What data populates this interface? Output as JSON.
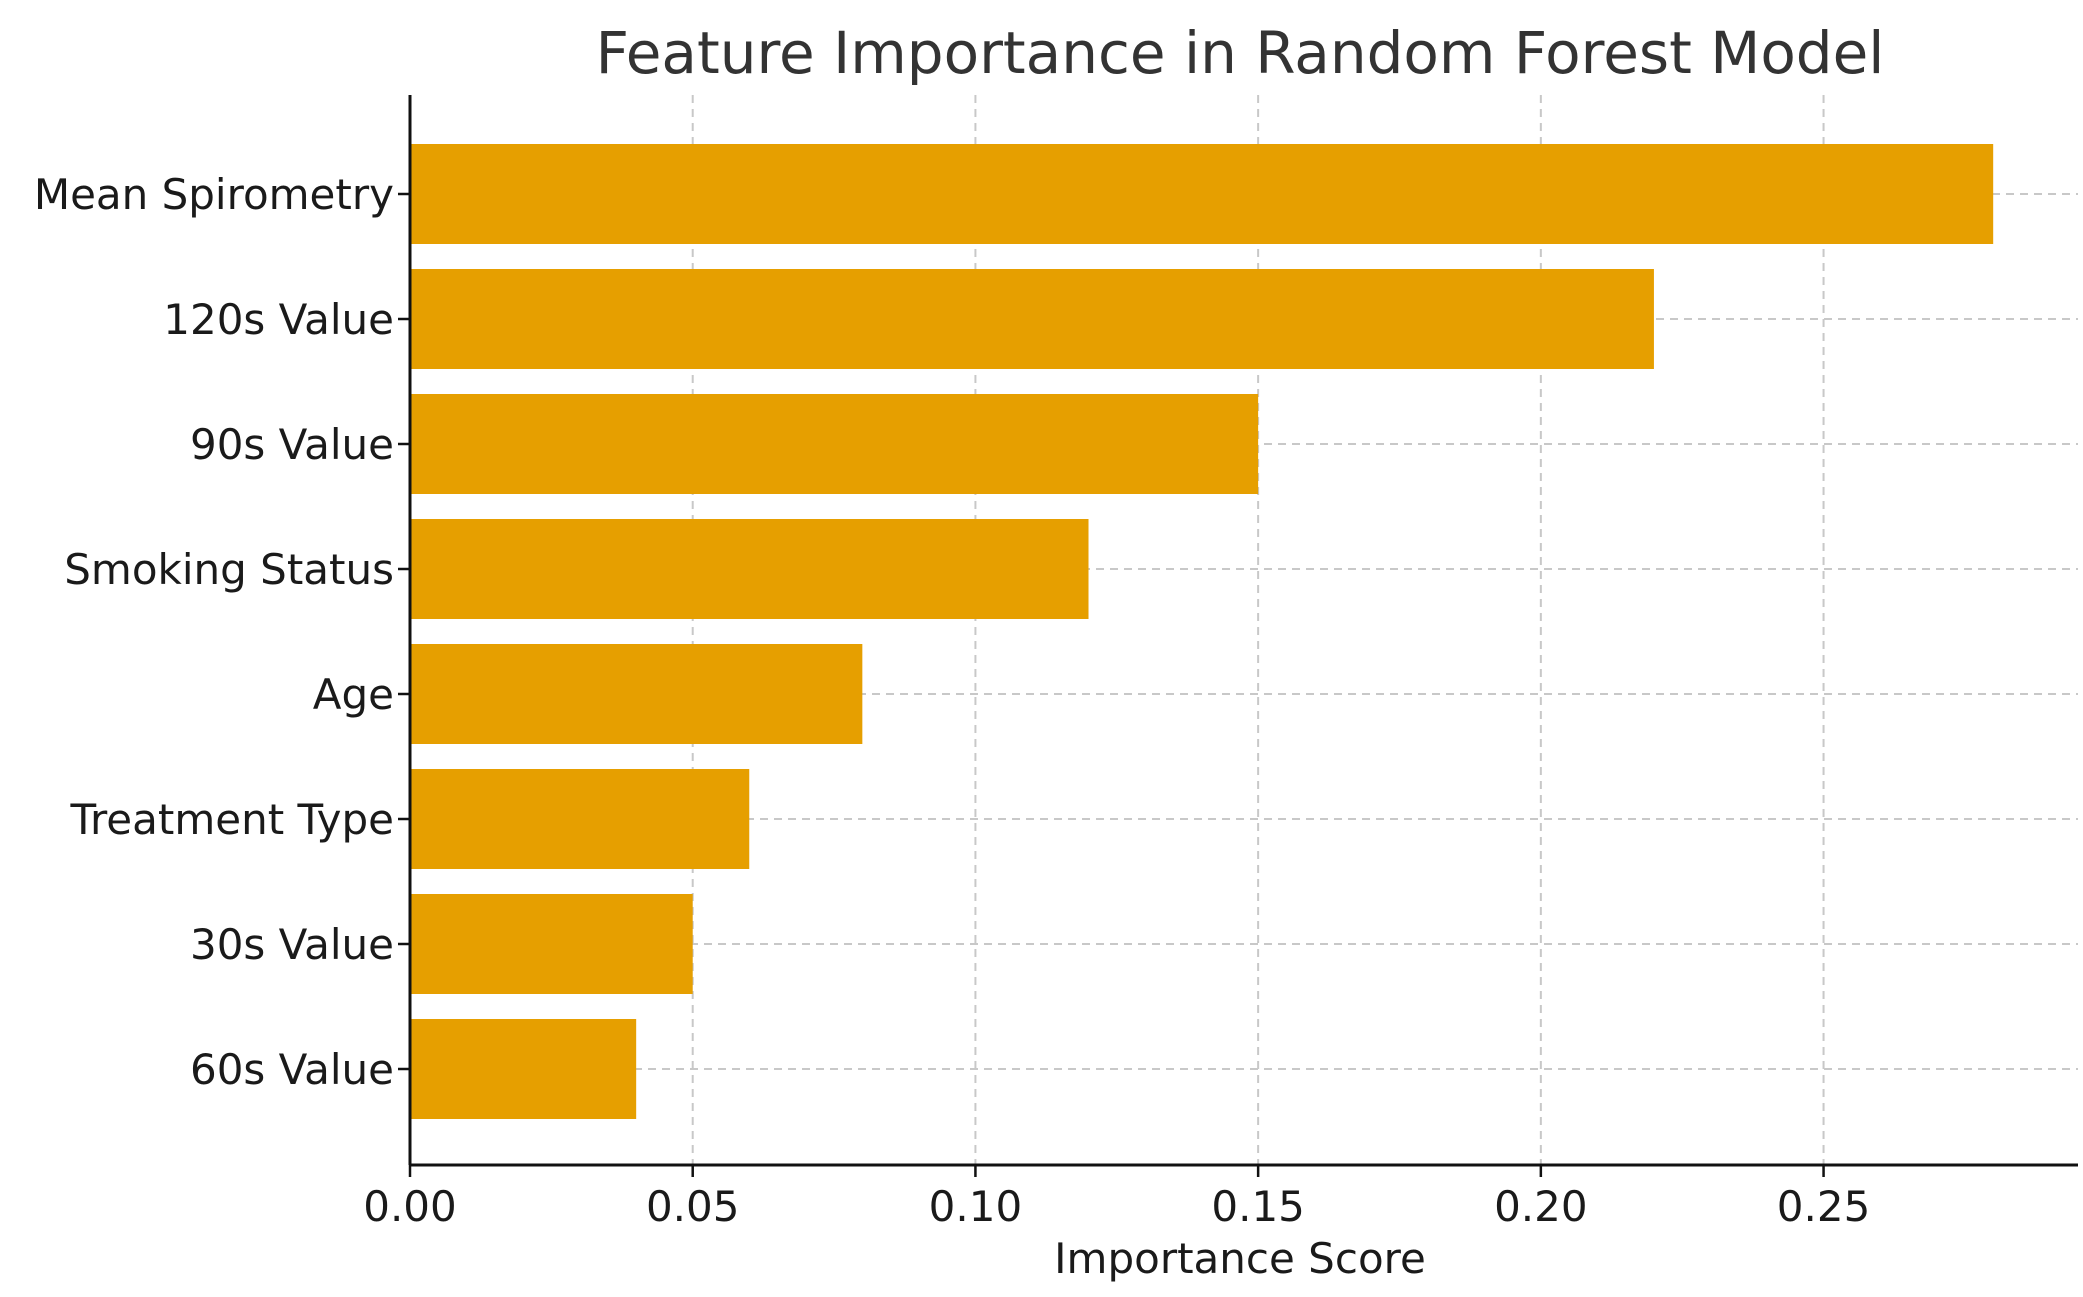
{
  "chart_data": {
    "type": "bar",
    "orientation": "horizontal",
    "title": "Feature Importance in Random Forest Model",
    "xlabel": "Importance Score",
    "ylabel": "",
    "categories": [
      "Mean Spirometry",
      "120s Value",
      "90s Value",
      "Smoking Status",
      "Age",
      "Treatment Type",
      "30s Value",
      "60s Value"
    ],
    "values": [
      0.28,
      0.22,
      0.15,
      0.12,
      0.08,
      0.06,
      0.05,
      0.04
    ],
    "xlim": [
      0,
      0.295
    ],
    "xticks": [
      0.0,
      0.05,
      0.1,
      0.15,
      0.2,
      0.25
    ],
    "xtick_labels": [
      "0.00",
      "0.05",
      "0.10",
      "0.15",
      "0.20",
      "0.25"
    ],
    "grid": true,
    "legend": "none",
    "bar_color": "#E69F00"
  }
}
